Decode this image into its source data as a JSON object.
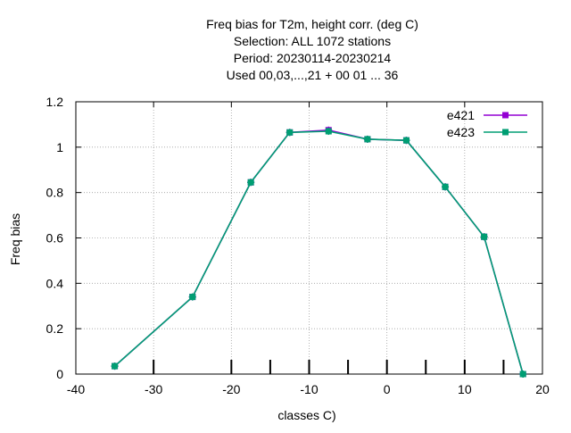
{
  "chart_data": {
    "type": "line",
    "title_lines": [
      "Freq bias  for T2m, height corr. (deg C)",
      "Selection: ALL   1072 stations",
      "Period: 20230114-20230214",
      "Used  00,03,...,21  + 00 01 ... 36"
    ],
    "xlabel": "classes C)",
    "ylabel": "Freq bias",
    "xlim": [
      -40,
      20
    ],
    "ylim": [
      0,
      1.2
    ],
    "x_ticks": [
      -40,
      -30,
      -20,
      -10,
      0,
      10,
      20
    ],
    "y_ticks": [
      0,
      0.2,
      0.4,
      0.6,
      0.8,
      1,
      1.2
    ],
    "x_tick_labels": [
      "-40",
      "-30",
      "-20",
      "-10",
      "0",
      "10",
      "20"
    ],
    "y_tick_labels": [
      "0",
      "0.2",
      "0.4",
      "0.6",
      "0.8",
      "1",
      "1.2"
    ],
    "grid": true,
    "legend_position": "top-right",
    "x": [
      -35,
      -25,
      -17.5,
      -12.5,
      -7.5,
      -2.5,
      2.5,
      7.5,
      12.5,
      17.5
    ],
    "bottom_tick_marks": [
      -30,
      -20,
      -15,
      -10,
      -5,
      0,
      5,
      10,
      15
    ],
    "series": [
      {
        "name": "e421",
        "color": "#9400d3",
        "values": [
          0.035,
          0.34,
          0.845,
          1.065,
          1.075,
          1.035,
          1.03,
          0.825,
          0.605,
          0.0
        ]
      },
      {
        "name": "e423",
        "color": "#009e73",
        "values": [
          0.035,
          0.34,
          0.845,
          1.065,
          1.07,
          1.035,
          1.03,
          0.825,
          0.605,
          0.0
        ]
      }
    ]
  }
}
